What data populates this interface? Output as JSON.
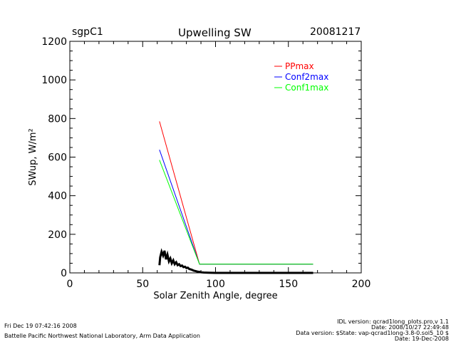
{
  "header": {
    "left": "sgpC1",
    "title": "Upwelling SW",
    "right": "20081217"
  },
  "footer": {
    "left_line1": "Fri Dec 19 07:42:16 2008",
    "left_line2": "Battelle Pacific Northwest National Laboratory, Arm Data Application",
    "right_line1": "IDL version: qcrad1long_plots.pro,v 1.1",
    "right_line2": "Date: 2008/10/27 22:49:48",
    "right_line3": "Data version: $State: vap-qcrad1long-3.8-0.sol5_10 $",
    "right_line4": "Date: 19-Dec-2008"
  },
  "chart_data": {
    "type": "line",
    "title": "Upwelling SW",
    "xlabel": "Solar Zenith Angle, degree",
    "ylabel": "SWup, W/m²",
    "xlim": [
      0,
      200
    ],
    "ylim": [
      0,
      1200
    ],
    "xticks": [
      0,
      50,
      100,
      150,
      200
    ],
    "yticks": [
      0,
      200,
      400,
      600,
      800,
      1000,
      1200
    ],
    "grid": false,
    "legend_position": "top-right",
    "series": [
      {
        "name": "PPmax",
        "color": "#ff0000",
        "x": [
          61.5,
          89,
          167
        ],
        "y": [
          785,
          45,
          45
        ]
      },
      {
        "name": "Conf2max",
        "color": "#0000ff",
        "x": [
          61.5,
          89,
          167
        ],
        "y": [
          638,
          45,
          45
        ]
      },
      {
        "name": "Conf1max",
        "color": "#00ff00",
        "x": [
          61.5,
          89,
          167
        ],
        "y": [
          585,
          45,
          45
        ]
      },
      {
        "name": "",
        "color": "#000000",
        "x": [
          61.5,
          62,
          63,
          64,
          65,
          66,
          67,
          68,
          69,
          70,
          71,
          72,
          73,
          74,
          75,
          76,
          77,
          78,
          79,
          80,
          81,
          82,
          83,
          84,
          85,
          86,
          87,
          88,
          89,
          90,
          92,
          95,
          100,
          110,
          120,
          130,
          140,
          150,
          160,
          167
        ],
        "y": [
          40,
          80,
          110,
          90,
          115,
          70,
          95,
          60,
          75,
          50,
          65,
          45,
          55,
          40,
          45,
          35,
          38,
          30,
          32,
          25,
          27,
          20,
          18,
          15,
          12,
          10,
          8,
          6,
          5,
          3,
          2,
          1,
          0,
          0,
          0,
          0,
          0,
          0,
          0,
          0
        ]
      }
    ]
  }
}
